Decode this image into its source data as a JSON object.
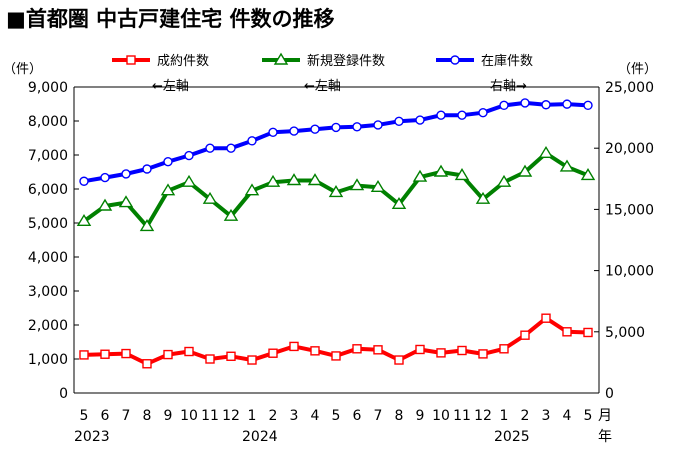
{
  "chart_data": {
    "type": "line",
    "title": "■首都圏 中古戸建住宅 件数の推移",
    "left_axis_unit": "（件）",
    "right_axis_unit": "（件）",
    "month_axis_unit": "月",
    "year_axis_unit": "年",
    "left_ylim": [
      0,
      9000
    ],
    "right_ylim": [
      0,
      25000
    ],
    "left_ticks": [
      "0",
      "1,000",
      "2,000",
      "3,000",
      "4,000",
      "5,000",
      "6,000",
      "7,000",
      "8,000",
      "9,000"
    ],
    "right_ticks": [
      "0",
      "5,000",
      "10,000",
      "15,000",
      "20,000",
      "25,000"
    ],
    "month_labels": [
      "5",
      "6",
      "7",
      "8",
      "9",
      "10",
      "11",
      "12",
      "1",
      "2",
      "3",
      "4",
      "5",
      "6",
      "7",
      "8",
      "9",
      "10",
      "11",
      "12",
      "1",
      "2",
      "3",
      "4",
      "5"
    ],
    "year_labels": [
      {
        "label": "2023",
        "index": 0
      },
      {
        "label": "2024",
        "index": 8
      },
      {
        "label": "2025",
        "index": 20
      }
    ],
    "grid": false,
    "legend_position": "top",
    "series": [
      {
        "name": "成約件数",
        "note": "←左軸",
        "axis": "left",
        "color": "#ff0000",
        "marker": "square",
        "values": [
          1120,
          1140,
          1160,
          860,
          1130,
          1220,
          1000,
          1080,
          970,
          1170,
          1370,
          1240,
          1090,
          1300,
          1270,
          970,
          1280,
          1180,
          1250,
          1150,
          1300,
          1700,
          2200,
          1800,
          1780
        ]
      },
      {
        "name": "新規登録件数",
        "note": "←左軸",
        "axis": "left",
        "color": "#008000",
        "marker": "triangle",
        "values": [
          5050,
          5500,
          5600,
          4900,
          5950,
          6200,
          5700,
          5200,
          5950,
          6200,
          6250,
          6250,
          5900,
          6100,
          6050,
          5550,
          6350,
          6500,
          6400,
          5700,
          6200,
          6500,
          7050,
          6650,
          6400
        ]
      },
      {
        "name": "在庫件数",
        "note": "右軸→",
        "axis": "right",
        "color": "#0000ff",
        "marker": "circle",
        "values": [
          17300,
          17600,
          17900,
          18300,
          18900,
          19400,
          20000,
          20000,
          20600,
          21300,
          21400,
          21550,
          21700,
          21750,
          21900,
          22200,
          22300,
          22700,
          22700,
          22900,
          23500,
          23700,
          23550,
          23600,
          23500
        ]
      }
    ]
  }
}
